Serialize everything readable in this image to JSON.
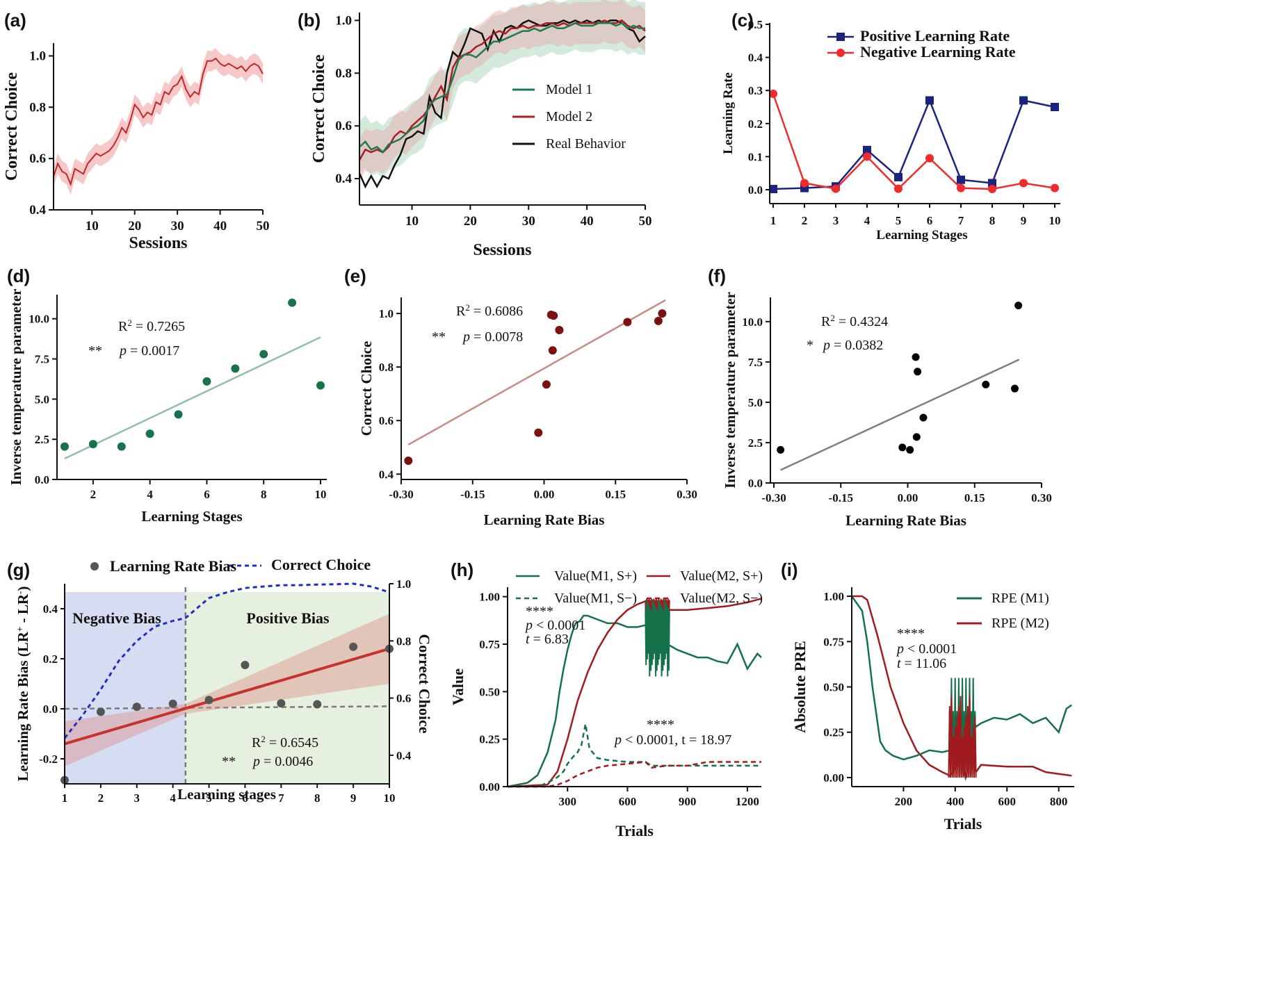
{
  "chart_data": [
    {
      "panel": "a",
      "type": "line",
      "title": "(a)",
      "xlabel": "Sessions",
      "ylabel": "Correct Choice",
      "xlim": [
        1,
        50
      ],
      "ylim": [
        0.4,
        1.05
      ],
      "xticks": [
        "10",
        "20",
        "30",
        "40",
        "50"
      ],
      "yticks": [
        "0.4",
        "0.6",
        "0.8",
        "1.0"
      ],
      "color": "#c0282d",
      "band_color": "#f2a3a3",
      "series": [
        {
          "name": "Correct Choice",
          "x": [
            1,
            2,
            3,
            4,
            5,
            6,
            7,
            8,
            9,
            10,
            11,
            12,
            13,
            14,
            15,
            16,
            17,
            18,
            19,
            20,
            21,
            22,
            23,
            24,
            25,
            26,
            27,
            28,
            29,
            30,
            31,
            32,
            33,
            34,
            35,
            36,
            37,
            38,
            39,
            40,
            41,
            42,
            43,
            44,
            45,
            46,
            47,
            48,
            49,
            50
          ],
          "values": [
            0.53,
            0.58,
            0.55,
            0.54,
            0.5,
            0.56,
            0.55,
            0.54,
            0.58,
            0.6,
            0.62,
            0.61,
            0.62,
            0.63,
            0.65,
            0.68,
            0.72,
            0.7,
            0.75,
            0.81,
            0.79,
            0.76,
            0.78,
            0.77,
            0.82,
            0.81,
            0.86,
            0.85,
            0.88,
            0.89,
            0.92,
            0.87,
            0.84,
            0.86,
            0.85,
            0.93,
            0.98,
            0.98,
            0.99,
            0.97,
            0.96,
            0.97,
            0.96,
            0.95,
            0.96,
            0.94,
            0.96,
            0.97,
            0.96,
            0.93
          ],
          "error": 0.04
        }
      ]
    },
    {
      "panel": "b",
      "type": "line",
      "title": "(b)",
      "xlabel": "Sessions",
      "ylabel": "Correct Choice",
      "xlim": [
        1,
        50
      ],
      "ylim": [
        0.3,
        1.03
      ],
      "xticks": [
        "10",
        "20",
        "30",
        "40",
        "50"
      ],
      "yticks": [
        "0.4",
        "0.6",
        "0.8",
        "1.0"
      ],
      "legend": [
        "Model 1",
        "Model 2",
        "Real Behavior"
      ],
      "series": [
        {
          "name": "Model 1",
          "color": "#1e7a4c",
          "band_color": "#9fd1b4",
          "values": [
            0.52,
            0.54,
            0.51,
            0.52,
            0.5,
            0.53,
            0.54,
            0.55,
            0.57,
            0.59,
            0.6,
            0.62,
            0.68,
            0.7,
            0.71,
            0.72,
            0.78,
            0.85,
            0.87,
            0.87,
            0.86,
            0.88,
            0.9,
            0.92,
            0.92,
            0.93,
            0.94,
            0.95,
            0.96,
            0.96,
            0.97,
            0.96,
            0.97,
            0.98,
            0.97,
            0.97,
            0.98,
            0.99,
            0.98,
            0.98,
            0.98,
            0.99,
            0.99,
            0.99,
            0.98,
            0.99,
            0.97,
            0.98,
            0.97,
            0.97
          ],
          "error": 0.1
        },
        {
          "name": "Model 2",
          "color": "#a81e22",
          "band_color": "#e6a8a8",
          "values": [
            0.47,
            0.51,
            0.5,
            0.51,
            0.5,
            0.52,
            0.56,
            0.58,
            0.57,
            0.6,
            0.62,
            0.64,
            0.67,
            0.71,
            0.75,
            0.7,
            0.82,
            0.86,
            0.87,
            0.88,
            0.9,
            0.91,
            0.93,
            0.95,
            0.96,
            0.95,
            0.97,
            0.97,
            0.98,
            0.97,
            0.98,
            0.98,
            0.99,
            0.99,
            0.98,
            0.99,
            0.98,
            0.99,
            0.99,
            0.99,
            0.99,
            0.99,
            1.0,
            0.99,
            0.99,
            1.0,
            0.98,
            0.97,
            0.98,
            0.96
          ],
          "error": 0.08
        },
        {
          "name": "Real Behavior",
          "color": "#111111",
          "values": [
            0.42,
            0.37,
            0.41,
            0.37,
            0.41,
            0.4,
            0.45,
            0.49,
            0.55,
            0.56,
            0.58,
            0.57,
            0.71,
            0.65,
            0.63,
            0.8,
            0.88,
            0.86,
            0.91,
            0.97,
            0.96,
            0.95,
            0.89,
            0.96,
            0.92,
            0.97,
            0.98,
            0.97,
            0.99,
            1.0,
            0.99,
            0.98,
            0.98,
            0.99,
            0.99,
            1.0,
            0.99,
            1.0,
            0.99,
            1.0,
            0.99,
            1.0,
            0.99,
            1.0,
            1.0,
            0.99,
            0.97,
            0.96,
            0.92,
            0.94
          ]
        }
      ]
    },
    {
      "panel": "c",
      "type": "line",
      "title": "(c)",
      "xlabel": "Learning Stages",
      "ylabel": "Learning Rate",
      "xlim": [
        1,
        10
      ],
      "ylim": [
        0,
        0.5
      ],
      "categories": [
        "1",
        "2",
        "3",
        "4",
        "5",
        "6",
        "7",
        "8",
        "9",
        "10"
      ],
      "yticks": [
        "0.0",
        "0.1",
        "0.2",
        "0.3",
        "0.4",
        "0.5"
      ],
      "series": [
        {
          "name": "Positive Learning Rate",
          "color": "#1a237e",
          "marker": "square",
          "values": [
            0.002,
            0.005,
            0.01,
            0.12,
            0.038,
            0.27,
            0.03,
            0.02,
            0.27,
            0.25
          ]
        },
        {
          "name": "Negative Learning Rate",
          "color": "#ef2b2b",
          "marker": "circle",
          "values": [
            0.29,
            0.02,
            0.003,
            0.1,
            0.003,
            0.095,
            0.005,
            0.002,
            0.02,
            0.005
          ]
        }
      ]
    },
    {
      "panel": "d",
      "type": "scatter",
      "title": "(d)",
      "xlabel": "Learning Stages",
      "ylabel": "Inverse temperature parameter",
      "xlim": [
        0.9,
        10.2
      ],
      "ylim": [
        0,
        11.5
      ],
      "xticks": [
        "2",
        "4",
        "6",
        "8",
        "10"
      ],
      "yticks": [
        "0.0",
        "2.5",
        "5.0",
        "7.5",
        "10.0"
      ],
      "x": [
        1,
        2,
        3,
        4,
        5,
        6,
        7,
        8,
        9,
        10
      ],
      "y": [
        2.05,
        2.2,
        2.05,
        2.85,
        4.05,
        6.1,
        6.9,
        7.8,
        11.0,
        5.85
      ],
      "fit": [
        1.3,
        8.85
      ],
      "r2_label": "R",
      "r2_value": "= 0.7265",
      "sig": "**",
      "p_label": "p",
      "p_value": "= 0.0017",
      "point_color": "#16734a",
      "line_color": "#8fbfa7"
    },
    {
      "panel": "e",
      "type": "scatter",
      "title": "(e)",
      "xlabel": "Learning Rate Bias",
      "ylabel": "Correct Choice",
      "xlim": [
        -0.3,
        0.3
      ],
      "ylim": [
        0.38,
        1.06
      ],
      "xticks": [
        "-0.30",
        "-0.15",
        "0.00",
        "0.15",
        "0.30"
      ],
      "yticks": [
        "0.4",
        "0.6",
        "0.8",
        "1.0"
      ],
      "x": [
        -0.285,
        -0.012,
        0.005,
        0.015,
        0.02,
        0.018,
        0.032,
        0.175,
        0.24,
        0.248
      ],
      "y": [
        0.45,
        0.555,
        0.735,
        0.995,
        0.992,
        0.862,
        0.938,
        0.968,
        0.972,
        1.0
      ],
      "fit_x": [
        -0.285,
        0.255
      ],
      "fit": [
        0.51,
        1.05
      ],
      "r2_label": "R",
      "r2_value": "= 0.6086",
      "sig": "**",
      "p_label": "p",
      "p_value": "= 0.0078",
      "point_color": "#7b1111",
      "line_color": "#c98a86"
    },
    {
      "panel": "f",
      "type": "scatter",
      "title": "(f)",
      "xlabel": "Learning Rate Bias",
      "ylabel": "Inverse temperature parameter",
      "xlim": [
        -0.3,
        0.3
      ],
      "ylim": [
        0,
        11.5
      ],
      "xticks": [
        "-0.30",
        "-0.15",
        "0.00",
        "0.15",
        "0.30"
      ],
      "yticks": [
        "0.0",
        "2.5",
        "5.0",
        "7.5",
        "10.0"
      ],
      "x": [
        -0.285,
        -0.012,
        0.005,
        0.018,
        0.02,
        0.022,
        0.035,
        0.175,
        0.24,
        0.248
      ],
      "y": [
        2.05,
        2.2,
        2.05,
        7.8,
        2.85,
        6.9,
        4.05,
        6.1,
        5.85,
        11.0
      ],
      "fit_x": [
        -0.285,
        0.25
      ],
      "fit": [
        0.8,
        7.65
      ],
      "r2_label": "R",
      "r2_value": "= 0.4324",
      "sig": "*",
      "p_label": "p",
      "p_value": "= 0.0382",
      "point_color": "#000000",
      "line_color": "#7f7f7f"
    },
    {
      "panel": "g",
      "type": "scatter",
      "title": "(g)",
      "xlabel": "Learning stages",
      "ylabel": "Learning Rate Bias (LR⁺ - LR⁻)",
      "y2label": "Correct Choice",
      "xlim": [
        1,
        10
      ],
      "ylim": [
        -0.3,
        0.5
      ],
      "y2lim": [
        0.3,
        1.0
      ],
      "xticks": [
        "1",
        "2",
        "3",
        "4",
        "5",
        "6",
        "7",
        "8",
        "9",
        "10"
      ],
      "yticks": [
        "-0.2",
        "0.0",
        "0.2",
        "0.4"
      ],
      "y2ticks": [
        "0.4",
        "0.6",
        "0.8",
        "1.0"
      ],
      "legend": [
        "Learning Rate Bias",
        "Correct Choice"
      ],
      "regions": [
        "Negative Bias",
        "Positive Bias"
      ],
      "divider_x": 4.35,
      "bias_x": [
        1,
        2,
        3,
        4,
        5,
        6,
        7,
        8,
        9,
        10
      ],
      "bias_y": [
        -0.285,
        -0.012,
        0.008,
        0.02,
        0.035,
        0.175,
        0.022,
        0.018,
        0.248,
        0.24
      ],
      "fit": [
        -0.14,
        0.24
      ],
      "correct_x": [
        1,
        1.5,
        2,
        2.5,
        3,
        3.5,
        4,
        4.35,
        5,
        5.5,
        6,
        6.5,
        7,
        7.5,
        8,
        8.5,
        9,
        9.5,
        10
      ],
      "correct_y": [
        0.46,
        0.54,
        0.63,
        0.73,
        0.8,
        0.85,
        0.87,
        0.88,
        0.95,
        0.97,
        0.985,
        0.99,
        0.995,
        0.995,
        0.997,
        0.998,
        1.0,
        0.99,
        0.97
      ],
      "r2_label": "R",
      "r2_value": "= 0.6545",
      "sig": "**",
      "p_label": "p",
      "p_value": "= 0.0046",
      "point_color": "#555555",
      "line_color": "#c8322d",
      "correct_color": "#1f2fbf"
    },
    {
      "panel": "h",
      "type": "line",
      "title": "(h)",
      "xlabel": "Trials",
      "ylabel": "Value",
      "xlim": [
        0,
        1270
      ],
      "ylim": [
        0,
        1.05
      ],
      "xticks": [
        "300",
        "600",
        "900",
        "1200"
      ],
      "yticks": [
        "0.00",
        "0.25",
        "0.50",
        "0.75",
        "1.00"
      ],
      "legend": [
        "Value(M1, S+)",
        "Value(M2, S+)",
        "Value(M1, S−)",
        "Value(M2, S−)"
      ],
      "annotations": [
        {
          "stars": "****",
          "p_label": "p",
          "p_value": "< 0.0001",
          "t_label": "t",
          "t_value": "= 6.83"
        },
        {
          "stars": "****",
          "p_label": "p",
          "p_value": "< 0.0001, t = 18.97"
        }
      ],
      "series": [
        {
          "name": "Value(M1, S+)",
          "color": "#15714a",
          "x": [
            0,
            100,
            150,
            200,
            240,
            260,
            280,
            300,
            320,
            340,
            360,
            380,
            400,
            450,
            500,
            550,
            600,
            650,
            690,
            760,
            800,
            850,
            900,
            950,
            1000,
            1050,
            1100,
            1150,
            1200,
            1250,
            1270
          ],
          "values": [
            0,
            0.02,
            0.06,
            0.18,
            0.35,
            0.5,
            0.62,
            0.72,
            0.8,
            0.86,
            0.87,
            0.9,
            0.9,
            0.88,
            0.86,
            0.86,
            0.84,
            0.84,
            0.85,
            0.8,
            0.75,
            0.72,
            0.7,
            0.68,
            0.68,
            0.66,
            0.65,
            0.75,
            0.62,
            0.7,
            0.68
          ]
        },
        {
          "name": "Value(M2, S+)",
          "color": "#a11a1e",
          "x": [
            0,
            200,
            250,
            300,
            350,
            400,
            450,
            500,
            550,
            600,
            650,
            700,
            760,
            800,
            850,
            900,
            1000,
            1100,
            1200,
            1270
          ],
          "values": [
            0,
            0.01,
            0.08,
            0.25,
            0.45,
            0.6,
            0.72,
            0.81,
            0.88,
            0.93,
            0.96,
            0.98,
            0.96,
            0.93,
            0.93,
            0.93,
            0.94,
            0.95,
            0.97,
            0.99
          ]
        },
        {
          "name": "Value(M1, S−)",
          "color": "#15714a",
          "dash": true,
          "x": [
            0,
            150,
            200,
            250,
            280,
            300,
            330,
            350,
            370,
            390,
            410,
            450,
            500,
            600,
            690,
            720,
            800,
            900,
            1000,
            1100,
            1270
          ],
          "values": [
            0,
            0,
            0.02,
            0.05,
            0.08,
            0.12,
            0.16,
            0.18,
            0.22,
            0.33,
            0.2,
            0.15,
            0.14,
            0.13,
            0.13,
            0.11,
            0.11,
            0.11,
            0.11,
            0.11,
            0.11
          ]
        },
        {
          "name": "Value(M2, S−)",
          "color": "#a11a1e",
          "dash": true,
          "x": [
            0,
            200,
            250,
            300,
            350,
            400,
            450,
            500,
            600,
            690,
            720,
            800,
            900,
            1000,
            1100,
            1270
          ],
          "values": [
            0,
            0,
            0.01,
            0.03,
            0.06,
            0.08,
            0.1,
            0.11,
            0.12,
            0.13,
            0.1,
            0.11,
            0.11,
            0.13,
            0.13,
            0.13
          ]
        }
      ]
    },
    {
      "panel": "i",
      "type": "line",
      "title": "(i)",
      "xlabel": "Trials",
      "ylabel": "Absolute PRE",
      "xlim": [
        0,
        860
      ],
      "ylim": [
        -0.05,
        1.05
      ],
      "xticks": [
        "200",
        "400",
        "600",
        "800"
      ],
      "yticks": [
        "0.00",
        "0.25",
        "0.50",
        "0.75",
        "1.00"
      ],
      "legend": [
        "RPE (M1)",
        "RPE (M2)"
      ],
      "annotations": [
        {
          "stars": "****",
          "p_label": "p",
          "p_value": "< 0.0001",
          "t_label": "t",
          "t_value": "= 11.06"
        }
      ],
      "series": [
        {
          "name": "RPE (M1)",
          "color": "#15714a",
          "x": [
            0,
            40,
            60,
            80,
            100,
            110,
            130,
            160,
            200,
            250,
            300,
            350,
            380,
            400,
            420,
            440,
            460,
            480,
            500,
            550,
            600,
            650,
            700,
            750,
            800,
            830,
            850
          ],
          "values": [
            1.0,
            0.92,
            0.75,
            0.5,
            0.3,
            0.2,
            0.15,
            0.12,
            0.1,
            0.12,
            0.15,
            0.14,
            0.15,
            0.2,
            0.3,
            0.25,
            0.35,
            0.28,
            0.3,
            0.33,
            0.32,
            0.35,
            0.3,
            0.33,
            0.25,
            0.38,
            0.4
          ]
        },
        {
          "name": "RPE (M2)",
          "color": "#a11a1e",
          "x": [
            0,
            40,
            60,
            80,
            100,
            150,
            200,
            250,
            300,
            350,
            380,
            400,
            420,
            440,
            460,
            480,
            500,
            600,
            700,
            750,
            800,
            850
          ],
          "values": [
            1.0,
            1.0,
            0.98,
            0.88,
            0.78,
            0.5,
            0.3,
            0.15,
            0.07,
            0.03,
            0.01,
            0.05,
            0.1,
            0.0,
            0.12,
            0.03,
            0.07,
            0.06,
            0.06,
            0.03,
            0.02,
            0.01
          ]
        }
      ]
    }
  ]
}
